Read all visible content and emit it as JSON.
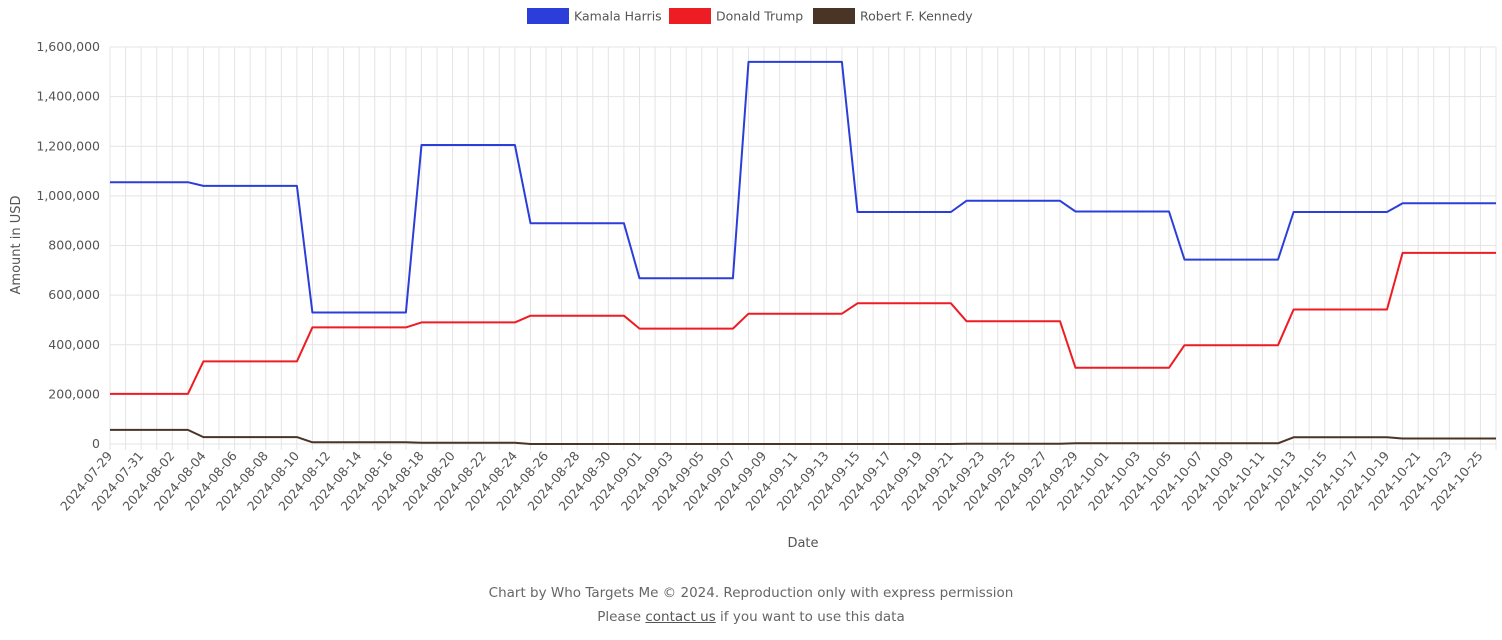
{
  "chart_data": {
    "type": "line",
    "xlabel": "Date",
    "ylabel": "Amount in USD",
    "ylim": [
      0,
      1600000
    ],
    "y_ticks": [
      0,
      200000,
      400000,
      600000,
      800000,
      1000000,
      1200000,
      1400000,
      1600000
    ],
    "y_tick_labels": [
      "0",
      "200,000",
      "400,000",
      "600,000",
      "800,000",
      "1,000,000",
      "1,200,000",
      "1,400,000",
      "1,600,000"
    ],
    "x_tick_labels": [
      "2024-07-29",
      "2024-07-31",
      "2024-08-02",
      "2024-08-04",
      "2024-08-06",
      "2024-08-08",
      "2024-08-10",
      "2024-08-12",
      "2024-08-14",
      "2024-08-16",
      "2024-08-18",
      "2024-08-20",
      "2024-08-22",
      "2024-08-24",
      "2024-08-26",
      "2024-08-28",
      "2024-08-30",
      "2024-09-01",
      "2024-09-03",
      "2024-09-05",
      "2024-09-07",
      "2024-09-09",
      "2024-09-11",
      "2024-09-13",
      "2024-09-15",
      "2024-09-17",
      "2024-09-19",
      "2024-09-21",
      "2024-09-23",
      "2024-09-25",
      "2024-09-27",
      "2024-09-29",
      "2024-10-01",
      "2024-10-03",
      "2024-10-05",
      "2024-10-07",
      "2024-10-09",
      "2024-10-11",
      "2024-10-13",
      "2024-10-15",
      "2024-10-17",
      "2024-10-19",
      "2024-10-21",
      "2024-10-23",
      "2024-10-25"
    ],
    "grid": true,
    "legend_position": "top",
    "series": [
      {
        "name": "Kamala Harris",
        "color": "#2b3ed9",
        "points": [
          [
            "2024-07-29",
            1055000
          ],
          [
            "2024-08-03",
            1055000
          ],
          [
            "2024-08-04",
            1040000
          ],
          [
            "2024-08-10",
            1040000
          ],
          [
            "2024-08-11",
            530000
          ],
          [
            "2024-08-17",
            530000
          ],
          [
            "2024-08-18",
            1205000
          ],
          [
            "2024-08-24",
            1205000
          ],
          [
            "2024-08-25",
            890000
          ],
          [
            "2024-08-31",
            890000
          ],
          [
            "2024-09-01",
            668000
          ],
          [
            "2024-09-07",
            668000
          ],
          [
            "2024-09-08",
            1540000
          ],
          [
            "2024-09-14",
            1540000
          ],
          [
            "2024-09-15",
            935000
          ],
          [
            "2024-09-21",
            935000
          ],
          [
            "2024-09-22",
            980000
          ],
          [
            "2024-09-28",
            980000
          ],
          [
            "2024-09-29",
            937000
          ],
          [
            "2024-10-05",
            937000
          ],
          [
            "2024-10-06",
            743000
          ],
          [
            "2024-10-12",
            743000
          ],
          [
            "2024-10-13",
            935000
          ],
          [
            "2024-10-19",
            935000
          ],
          [
            "2024-10-20",
            970000
          ],
          [
            "2024-10-26",
            970000
          ]
        ]
      },
      {
        "name": "Donald Trump",
        "color": "#ee1c23",
        "points": [
          [
            "2024-07-29",
            202000
          ],
          [
            "2024-08-03",
            202000
          ],
          [
            "2024-08-04",
            333000
          ],
          [
            "2024-08-10",
            333000
          ],
          [
            "2024-08-11",
            470000
          ],
          [
            "2024-08-17",
            470000
          ],
          [
            "2024-08-18",
            490000
          ],
          [
            "2024-08-24",
            490000
          ],
          [
            "2024-08-25",
            517000
          ],
          [
            "2024-08-31",
            517000
          ],
          [
            "2024-09-01",
            465000
          ],
          [
            "2024-09-07",
            465000
          ],
          [
            "2024-09-08",
            525000
          ],
          [
            "2024-09-14",
            525000
          ],
          [
            "2024-09-15",
            567000
          ],
          [
            "2024-09-21",
            567000
          ],
          [
            "2024-09-22",
            495000
          ],
          [
            "2024-09-28",
            495000
          ],
          [
            "2024-09-29",
            307000
          ],
          [
            "2024-10-05",
            307000
          ],
          [
            "2024-10-06",
            398000
          ],
          [
            "2024-10-12",
            398000
          ],
          [
            "2024-10-13",
            542000
          ],
          [
            "2024-10-19",
            542000
          ],
          [
            "2024-10-20",
            770000
          ],
          [
            "2024-10-26",
            770000
          ]
        ]
      },
      {
        "name": "Robert F. Kennedy",
        "color": "#4a3426",
        "points": [
          [
            "2024-07-29",
            57000
          ],
          [
            "2024-08-03",
            57000
          ],
          [
            "2024-08-04",
            28000
          ],
          [
            "2024-08-10",
            28000
          ],
          [
            "2024-08-11",
            7000
          ],
          [
            "2024-08-17",
            7000
          ],
          [
            "2024-08-18",
            5000
          ],
          [
            "2024-08-24",
            5000
          ],
          [
            "2024-08-25",
            0
          ],
          [
            "2024-08-31",
            0
          ],
          [
            "2024-09-01",
            0
          ],
          [
            "2024-09-07",
            0
          ],
          [
            "2024-09-08",
            0
          ],
          [
            "2024-09-14",
            0
          ],
          [
            "2024-09-15",
            0
          ],
          [
            "2024-09-21",
            0
          ],
          [
            "2024-09-22",
            1000
          ],
          [
            "2024-09-28",
            1000
          ],
          [
            "2024-09-29",
            3000
          ],
          [
            "2024-10-05",
            3000
          ],
          [
            "2024-10-06",
            3000
          ],
          [
            "2024-10-12",
            3000
          ],
          [
            "2024-10-13",
            27000
          ],
          [
            "2024-10-19",
            27000
          ],
          [
            "2024-10-20",
            22000
          ],
          [
            "2024-10-26",
            22000
          ]
        ]
      }
    ]
  },
  "footer": {
    "line1": "Chart by Who Targets Me © 2024. Reproduction only with express permission",
    "line2_prefix": "Please ",
    "line2_link": "contact us",
    "line2_suffix": " if you want to use this data"
  }
}
